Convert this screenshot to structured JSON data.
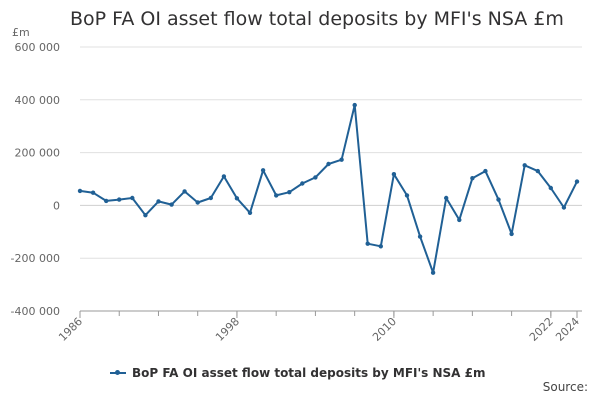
{
  "title": "BoP FA OI asset flow total deposits by MFI's NSA £m",
  "credit": "Source:",
  "colors": {
    "series": "#206095",
    "grid": "#e0e0e0",
    "axis": "#999999"
  },
  "chart_data": {
    "type": "line",
    "title": "BoP FA OI asset flow total deposits by MFI's NSA £m",
    "ylabel": "£m",
    "xlabel": "",
    "ylim": [
      -400000,
      600000
    ],
    "y_ticks": [
      {
        "value": -400000,
        "label": "-400 000"
      },
      {
        "value": -200000,
        "label": "-200 000"
      },
      {
        "value": 0,
        "label": "0"
      },
      {
        "value": 200000,
        "label": "200 000"
      },
      {
        "value": 400000,
        "label": "400 000"
      },
      {
        "value": 600000,
        "label": "600 000"
      }
    ],
    "xlim": [
      1986,
      2024
    ],
    "x_tick_labels": [
      {
        "value": 1986,
        "label": "1986"
      },
      {
        "value": 1998,
        "label": "1998"
      },
      {
        "value": 2010,
        "label": "2010"
      },
      {
        "value": 2022,
        "label": "2022"
      },
      {
        "value": 2024,
        "label": "2024"
      }
    ],
    "x_minor_ticks": [
      1986,
      1989,
      1992,
      1995,
      1998,
      2001,
      2004,
      2007,
      2010,
      2013,
      2016,
      2019,
      2022
    ],
    "legend": "BoP FA OI asset flow total deposits by MFI's NSA £m",
    "series": [
      {
        "name": "BoP FA OI asset flow total deposits by MFI's NSA £m",
        "x": [
          1986,
          1987,
          1988,
          1989,
          1990,
          1991,
          1992,
          1993,
          1994,
          1995,
          1996,
          1997,
          1998,
          1999,
          2000,
          2001,
          2002,
          2003,
          2004,
          2005,
          2006,
          2007,
          2008,
          2009,
          2010,
          2011,
          2012,
          2013,
          2014,
          2015,
          2016,
          2017,
          2018,
          2019,
          2020,
          2021,
          2022,
          2023,
          2024
        ],
        "values": [
          55000,
          48000,
          17000,
          22000,
          28000,
          -37000,
          15000,
          3000,
          53000,
          11000,
          28000,
          110000,
          27000,
          -28000,
          133000,
          38000,
          50000,
          83000,
          106000,
          157000,
          173000,
          380000,
          -145000,
          -155000,
          118000,
          38000,
          -118000,
          -255000,
          28000,
          -55000,
          103000,
          130000,
          22000,
          -108000,
          152000,
          130000,
          66000,
          -8000,
          90000
        ]
      }
    ]
  }
}
